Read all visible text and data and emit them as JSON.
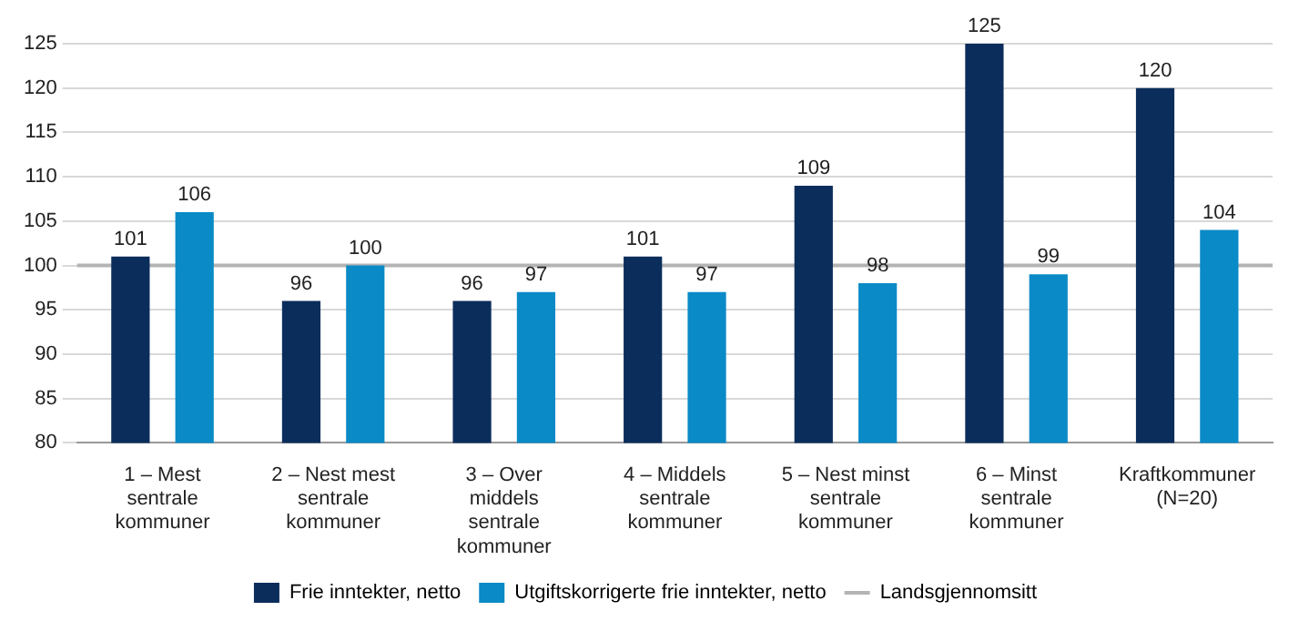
{
  "chart_data": {
    "type": "bar",
    "categories": [
      "1 – Mest sentrale kommuner",
      "2 – Nest mest sentrale kommuner",
      "3 – Over middels sentrale kommuner",
      "4 – Middels sentrale kommuner",
      "5 – Nest minst sentrale kommuner",
      "6 – Minst sentrale kommuner",
      "Kraftkommuner (N=20)"
    ],
    "series": [
      {
        "name": "Frie inntekter, netto",
        "color": "#0b2d5b",
        "values": [
          101,
          96,
          96,
          101,
          109,
          125,
          120
        ]
      },
      {
        "name": "Utgiftskorrigerte frie inntekter, netto",
        "color": "#0a8ac6",
        "values": [
          106,
          100,
          97,
          97,
          98,
          99,
          104
        ]
      }
    ],
    "ylim": [
      80,
      125
    ],
    "yticks": [
      80,
      85,
      90,
      95,
      100,
      105,
      110,
      115,
      120,
      125
    ],
    "grid": "y",
    "legend": "bottom",
    "data_labels": true,
    "ref_lines": [
      {
        "axis": "y",
        "value": 100,
        "label": "Landsgjennomsitt",
        "color": "#b4b4b4"
      }
    ]
  }
}
